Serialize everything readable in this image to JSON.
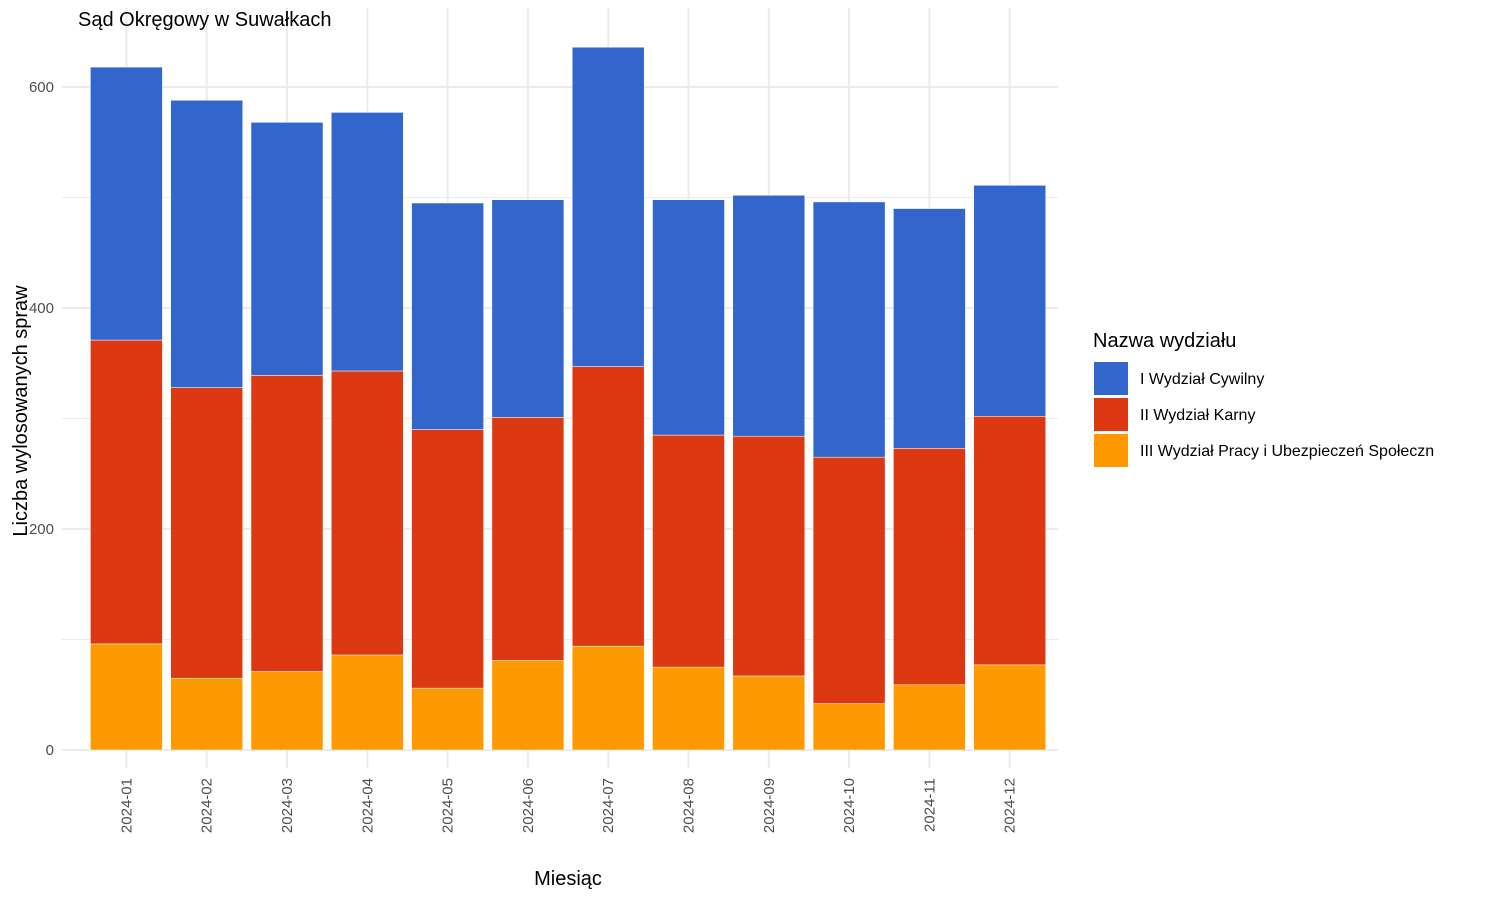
{
  "chart_data": {
    "type": "bar",
    "stacked": true,
    "title": "Sąd Okręgowy w Suwałkach",
    "xlabel": "Miesiąc",
    "ylabel": "Liczba wylosowanych spraw",
    "ylim": [
      0,
      635
    ],
    "y_ticks": [
      0,
      200,
      400,
      600
    ],
    "grid": true,
    "legend": {
      "title": "Nazwa wydziału",
      "position": "right"
    },
    "categories": [
      "2024-01",
      "2024-02",
      "2024-03",
      "2024-04",
      "2024-05",
      "2024-06",
      "2024-07",
      "2024-08",
      "2024-09",
      "2024-10",
      "2024-11",
      "2024-12"
    ],
    "series": [
      {
        "name": "III Wydział Pracy i Ubezpieczeń Społeczn",
        "color": "#ff9900",
        "values": [
          96,
          65,
          71,
          86,
          56,
          81,
          94,
          75,
          67,
          42,
          59,
          77
        ]
      },
      {
        "name": "II Wydział Karny",
        "color": "#dc3912",
        "values": [
          275,
          263,
          268,
          257,
          234,
          220,
          253,
          210,
          217,
          223,
          214,
          225
        ]
      },
      {
        "name": "I Wydział Cywilny",
        "color": "#3366cc",
        "values": [
          247,
          260,
          229,
          234,
          205,
          197,
          289,
          213,
          218,
          231,
          217,
          209
        ]
      }
    ],
    "legend_order": [
      2,
      1,
      0
    ]
  }
}
